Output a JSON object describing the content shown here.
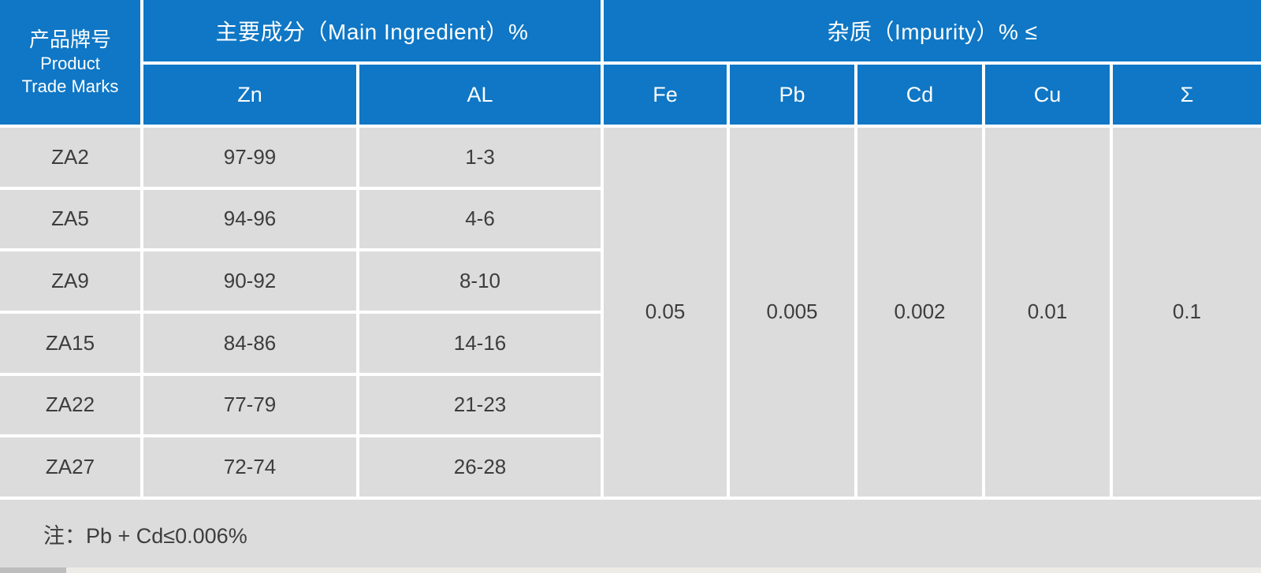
{
  "colors": {
    "header_blue": "#0F77C5",
    "cell_gray": "#DCDCDC",
    "divider_white": "#FFFFFF",
    "text_dark": "#3D3D3D",
    "text_white": "#FFFFFF"
  },
  "table": {
    "brand_header": {
      "zh": "产品牌号",
      "en_line1": "Product",
      "en_line2": "Trade Marks"
    },
    "group_headers": {
      "main": "主要成分（Main Ingredient）%",
      "impurity": "杂质（Impurity）% ≤"
    },
    "main_columns": [
      "Zn",
      "AL"
    ],
    "impurity_columns": [
      "Fe",
      "Pb",
      "Cd",
      "Cu",
      "Σ"
    ],
    "rows": [
      {
        "brand": "ZA2",
        "zn": "97-99",
        "al": "1-3"
      },
      {
        "brand": "ZA5",
        "zn": "94-96",
        "al": "4-6"
      },
      {
        "brand": "ZA9",
        "zn": "90-92",
        "al": "8-10"
      },
      {
        "brand": "ZA15",
        "zn": "84-86",
        "al": "14-16"
      },
      {
        "brand": "ZA22",
        "zn": "77-79",
        "al": "21-23"
      },
      {
        "brand": "ZA27",
        "zn": "72-74",
        "al": "26-28"
      }
    ],
    "impurity_limits": [
      "0.05",
      "0.005",
      "0.002",
      "0.01",
      "0.1"
    ],
    "note": "注：Pb + Cd≤0.006%"
  }
}
